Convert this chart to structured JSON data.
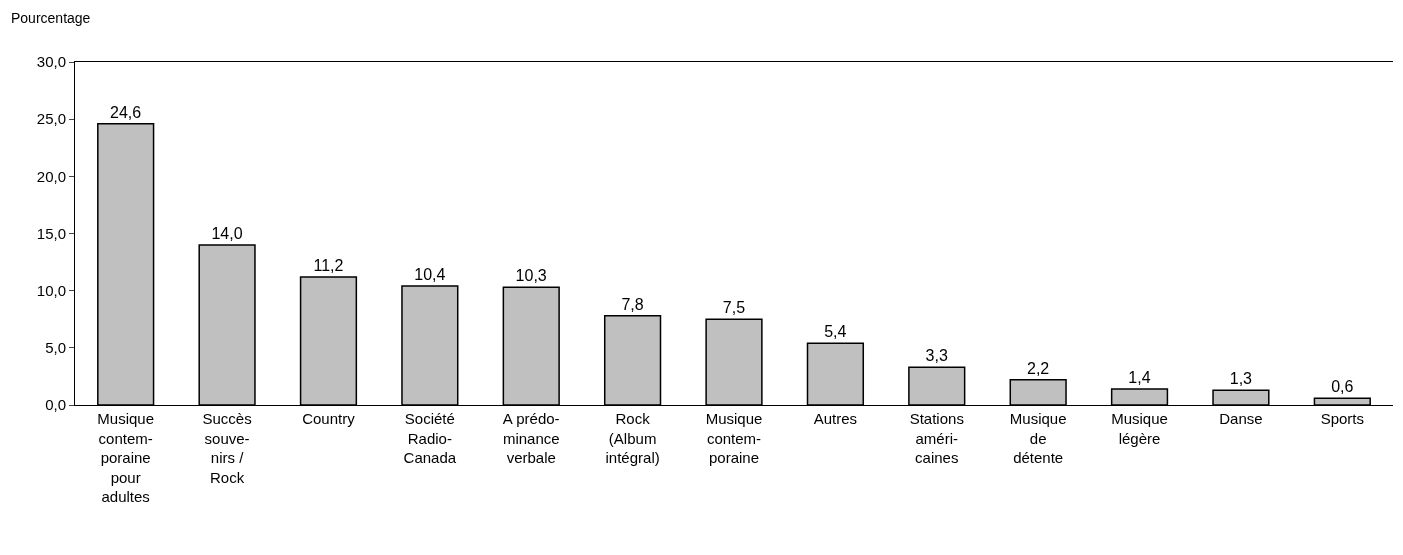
{
  "chart_data": {
    "type": "bar",
    "ylabel": "Pourcentage",
    "categories": [
      "Musique\ncontem-\nporaine\npour\nadultes",
      "Succès\nsouve-\nnirs /\nRock",
      "Country",
      "Société\nRadio-\nCanada",
      "A prédo-\nminance\nverbale",
      "Rock\n(Album\nintégral)",
      "Musique\ncontem-\nporaine",
      "Autres",
      "Stations\naméri-\ncaines",
      "Musique\nde\ndétente",
      "Musique\nlégère",
      "Danse",
      "Sports"
    ],
    "values": [
      24.6,
      14.0,
      11.2,
      10.4,
      10.3,
      7.8,
      7.5,
      5.4,
      3.3,
      2.2,
      1.4,
      1.3,
      0.6
    ],
    "value_labels": [
      "24,6",
      "14,0",
      "11,2",
      "10,4",
      "10,3",
      "7,8",
      "7,5",
      "5,4",
      "3,3",
      "2,2",
      "1,4",
      "1,3",
      "0,6"
    ],
    "color": "#c0c0c0",
    "ylim": [
      0,
      30
    ],
    "yticks": [
      {
        "value": 0,
        "label": "0,0"
      },
      {
        "value": 5,
        "label": "5,0"
      },
      {
        "value": 10,
        "label": "10,0"
      },
      {
        "value": 15,
        "label": "15,0"
      },
      {
        "value": 20,
        "label": "20,0"
      },
      {
        "value": 25,
        "label": "25,0"
      },
      {
        "value": 30,
        "label": "30,0"
      }
    ]
  }
}
